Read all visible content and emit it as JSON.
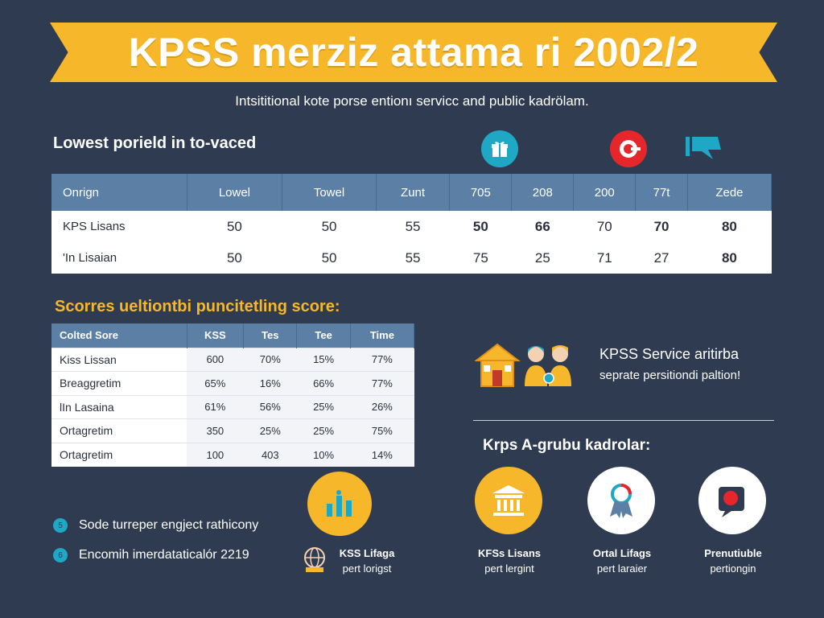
{
  "banner": {
    "title": "KPSS merziz attama ri 2002/2"
  },
  "subtitle": "Intsititional kote porse entionı servicc and public kadrölam.",
  "section1": {
    "heading": "Lowest porield in to-vaced",
    "columns": [
      "Onrign",
      "Lowel",
      "Towel",
      "Zunt",
      "705",
      "208",
      "200",
      "77t",
      "Zede"
    ],
    "rows": [
      {
        "label": "KPS Lisans",
        "values": [
          "50",
          "50",
          "55",
          "50",
          "66",
          "70",
          "70",
          "80"
        ]
      },
      {
        "label": "'In Lisaian",
        "values": [
          "50",
          "50",
          "55",
          "75",
          "25",
          "71",
          "27",
          "80"
        ]
      }
    ]
  },
  "section2": {
    "heading": "Scorres ueltiontbi puncitetling score:",
    "columns": [
      "Colted Sore",
      "KSS",
      "Tes",
      "Tee",
      "Time"
    ],
    "rows": [
      {
        "label": "Kiss Lissan",
        "values": [
          "600",
          "70%",
          "15%",
          "77%"
        ]
      },
      {
        "label": "Breaggretim",
        "values": [
          "65%",
          "16%",
          "66%",
          "77%"
        ]
      },
      {
        "label": "lIn Lasaina",
        "values": [
          "61%",
          "56%",
          "25%",
          "26%"
        ]
      },
      {
        "label": "Ortagretim",
        "values": [
          "350",
          "25%",
          "25%",
          "75%"
        ]
      },
      {
        "label": "Ortagretim",
        "values": [
          "100",
          "403",
          "10%",
          "14%"
        ]
      }
    ]
  },
  "service": {
    "title": "KPSS Service aritirba",
    "subtitle": "seprate persitiondi paltion!"
  },
  "a_grubu": {
    "heading": "Krps A-grubu kadrolar:"
  },
  "notes": [
    {
      "badge": "5",
      "text": "Sode turreper engject rathicony"
    },
    {
      "badge": "6",
      "text": "Encomih imerdataticalór 2219"
    }
  ],
  "captions": [
    {
      "line1": "KSS Lifaga",
      "line2": "pert lorigst"
    },
    {
      "line1": "KFSs Lisans",
      "line2": "pert lergint"
    },
    {
      "line1": "Ortal Lifags",
      "line2": "pert laraier"
    },
    {
      "line1": "Prenutiuble",
      "line2": "pertiongin"
    }
  ],
  "icons": [
    "gift-icon",
    "record-icon",
    "flag-icon",
    "house-icon",
    "people-icon",
    "chart-icon",
    "globe-icon",
    "bank-icon",
    "ribbon-award-icon",
    "alert-badge-icon"
  ],
  "colors": {
    "background": "#2f3b50",
    "accent": "#f6b82a",
    "header": "#5c7fa6",
    "teal": "#1fa7c6",
    "red": "#e5262b"
  }
}
